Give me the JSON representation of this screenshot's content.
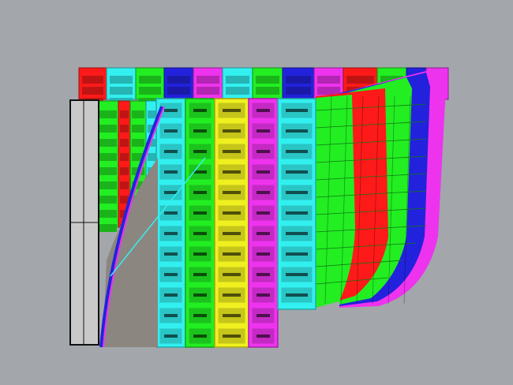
{
  "viewport": {
    "background": "#a3a7ab",
    "palette": {
      "red": "#ff1a1a",
      "cyan": "#33f0f0",
      "green": "#22ee22",
      "blue": "#2222dd",
      "magenta": "#ee33ee",
      "yellow": "#f0f020",
      "gray": "#c9c9c9",
      "brown": "#8c8680"
    },
    "back_row": [
      "red",
      "cyan",
      "green",
      "blue",
      "magenta",
      "cyan",
      "green",
      "blue",
      "magenta",
      "red",
      "green",
      "blue",
      "magenta"
    ],
    "front_columns": [
      "red",
      "green",
      "cyan",
      "green",
      "yellow",
      "magenta",
      "cyan",
      "green",
      "red",
      "green",
      "blue",
      "magenta"
    ]
  }
}
